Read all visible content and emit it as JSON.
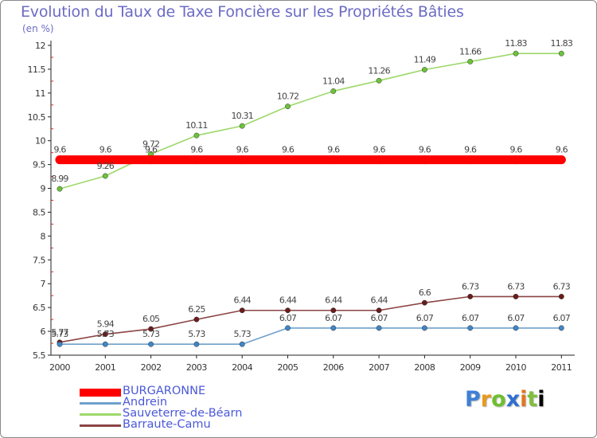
{
  "chart_data": {
    "type": "line",
    "title": "Evolution du Taux de Taxe Foncière sur les Propriétés Bâties",
    "subtitle": "(en %)",
    "xlabel": "",
    "ylabel": "",
    "x": [
      "2000",
      "2001",
      "2002",
      "2003",
      "2004",
      "2005",
      "2006",
      "2007",
      "2008",
      "2009",
      "2010",
      "2011"
    ],
    "ylim": [
      5.5,
      12
    ],
    "yticks": [
      "5.5",
      "6",
      "6.5",
      "7",
      "7.5",
      "8",
      "8.5",
      "9",
      "9.5",
      "10",
      "10.5",
      "11",
      "11.5",
      "12"
    ],
    "grid": false,
    "legend_position": "bottom-left",
    "series": [
      {
        "name": "BURGARONNE",
        "color": "#ff0000",
        "marker_color": "#ff0000",
        "bold": true,
        "values": [
          9.6,
          9.6,
          9.6,
          9.6,
          9.6,
          9.6,
          9.6,
          9.6,
          9.6,
          9.6,
          9.6,
          9.6
        ],
        "labels": [
          "9.6",
          "9.6",
          "9.6",
          "9.6",
          "9.6",
          "9.6",
          "9.6",
          "9.6",
          "9.6",
          "9.6",
          "9.6",
          "9.6"
        ]
      },
      {
        "name": "Andrein",
        "color": "#6fa0cc",
        "marker_color": "#3f86c6",
        "bold": false,
        "values": [
          5.73,
          5.73,
          5.73,
          5.73,
          5.73,
          6.07,
          6.07,
          6.07,
          6.07,
          6.07,
          6.07,
          6.07
        ],
        "labels": [
          "5.73",
          "5.73",
          "5.73",
          "5.73",
          "5.73",
          "6.07",
          "6.07",
          "6.07",
          "6.07",
          "6.07",
          "6.07",
          "6.07"
        ]
      },
      {
        "name": "Sauveterre-de-Béarn",
        "color": "#9ed86a",
        "marker_color": "#6cc23a",
        "bold": false,
        "values": [
          8.99,
          9.26,
          9.72,
          10.11,
          10.31,
          10.72,
          11.04,
          11.26,
          11.49,
          11.66,
          11.83,
          11.83
        ],
        "labels": [
          "8.99",
          "9.26",
          "9.72",
          "10.11",
          "10.31",
          "10.72",
          "11.04",
          "11.26",
          "11.49",
          "11.66",
          "11.83",
          "11.83"
        ]
      },
      {
        "name": "Barraute-Camu",
        "color": "#8b4545",
        "marker_color": "#6a1c1c",
        "bold": false,
        "values": [
          5.77,
          5.94,
          6.05,
          6.25,
          6.44,
          6.44,
          6.44,
          6.44,
          6.6,
          6.73,
          6.73,
          6.73
        ],
        "labels": [
          "5.77",
          "5.94",
          "6.05",
          "6.25",
          "6.44",
          "6.44",
          "6.44",
          "6.44",
          "6.6",
          "6.73",
          "6.73",
          "6.73"
        ]
      }
    ]
  },
  "logo": {
    "letters": [
      "P",
      "r",
      "o",
      "x",
      "i",
      "t",
      "i"
    ]
  }
}
